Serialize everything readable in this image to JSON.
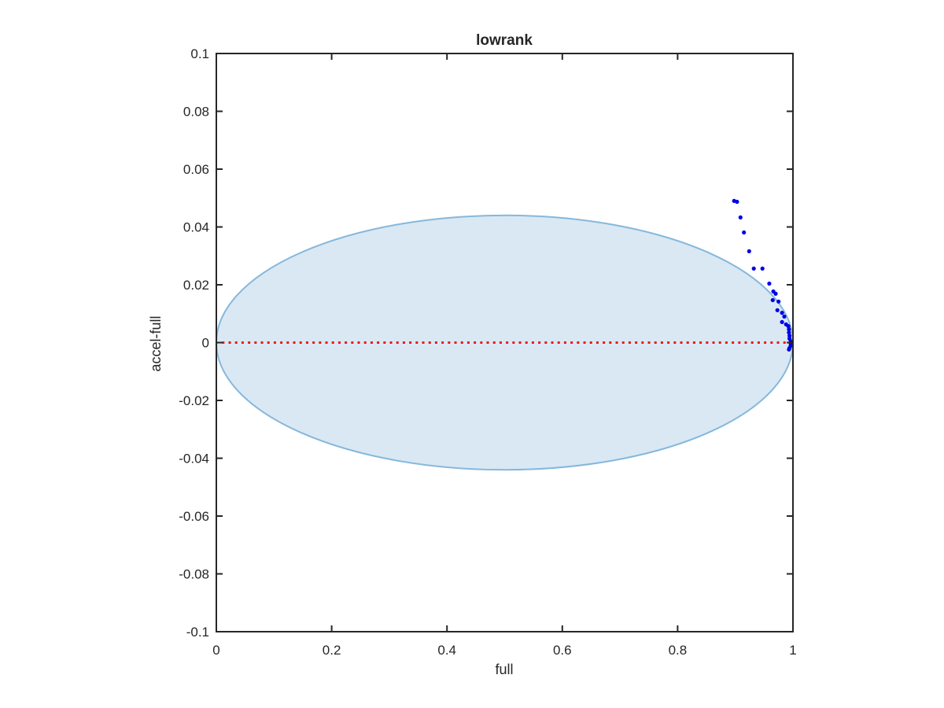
{
  "chart_data": {
    "type": "scatter",
    "title": "lowrank",
    "xlabel": "full",
    "ylabel": "accel-full",
    "xlim": [
      0,
      1
    ],
    "ylim": [
      -0.1,
      0.1
    ],
    "grid": false,
    "legend": null,
    "axis_color": "#262626",
    "background": "#ffffff",
    "xticks": {
      "values": [
        0,
        0.2,
        0.4,
        0.6,
        0.8,
        1
      ],
      "labels": [
        "0",
        "0.2",
        "0.4",
        "0.6",
        "0.8",
        "1"
      ]
    },
    "yticks": {
      "values": [
        0.1,
        0.08,
        0.06,
        0.04,
        0.02,
        0,
        -0.02,
        -0.04,
        -0.06,
        -0.08,
        -0.1
      ],
      "labels": [
        "0.1",
        "0.08",
        "0.06",
        "0.04",
        "0.02",
        "0",
        "-0.02",
        "-0.04",
        "-0.06",
        "-0.08",
        "-0.1"
      ]
    },
    "ellipse_region": {
      "cx": 0.5,
      "cy": 0,
      "rx": 0.5,
      "ry": 0.044,
      "fill": "#dae8f4",
      "edge": "#85b8dc"
    },
    "zero_line": {
      "y": 0,
      "x_start": 0.01,
      "x_end": 0.995,
      "style": "dotted",
      "color": "#f01515"
    },
    "series": [
      {
        "name": "lowrank-vs-full",
        "marker": "dot",
        "color": "#0000e8",
        "points": [
          [
            0.898,
            0.049
          ],
          [
            0.903,
            0.0487
          ],
          [
            0.909,
            0.0433
          ],
          [
            0.915,
            0.0381
          ],
          [
            0.924,
            0.0316
          ],
          [
            0.932,
            0.0256
          ],
          [
            0.947,
            0.0256
          ],
          [
            0.959,
            0.0204
          ],
          [
            0.966,
            0.0177
          ],
          [
            0.97,
            0.0169
          ],
          [
            0.965,
            0.0147
          ],
          [
            0.975,
            0.0142
          ],
          [
            0.973,
            0.0112
          ],
          [
            0.981,
            0.0103
          ],
          [
            0.985,
            0.009
          ],
          [
            0.981,
            0.0071
          ],
          [
            0.988,
            0.0063
          ],
          [
            0.992,
            0.0057
          ],
          [
            0.993,
            0.0046
          ],
          [
            0.993,
            0.0035
          ],
          [
            0.994,
            0.0024
          ],
          [
            0.994,
            0.0014
          ],
          [
            0.996,
            0.0005
          ],
          [
            0.996,
            -0.0003
          ],
          [
            0.996,
            -0.0011
          ],
          [
            0.994,
            -0.0019
          ],
          [
            0.993,
            -0.0024
          ]
        ]
      }
    ]
  }
}
